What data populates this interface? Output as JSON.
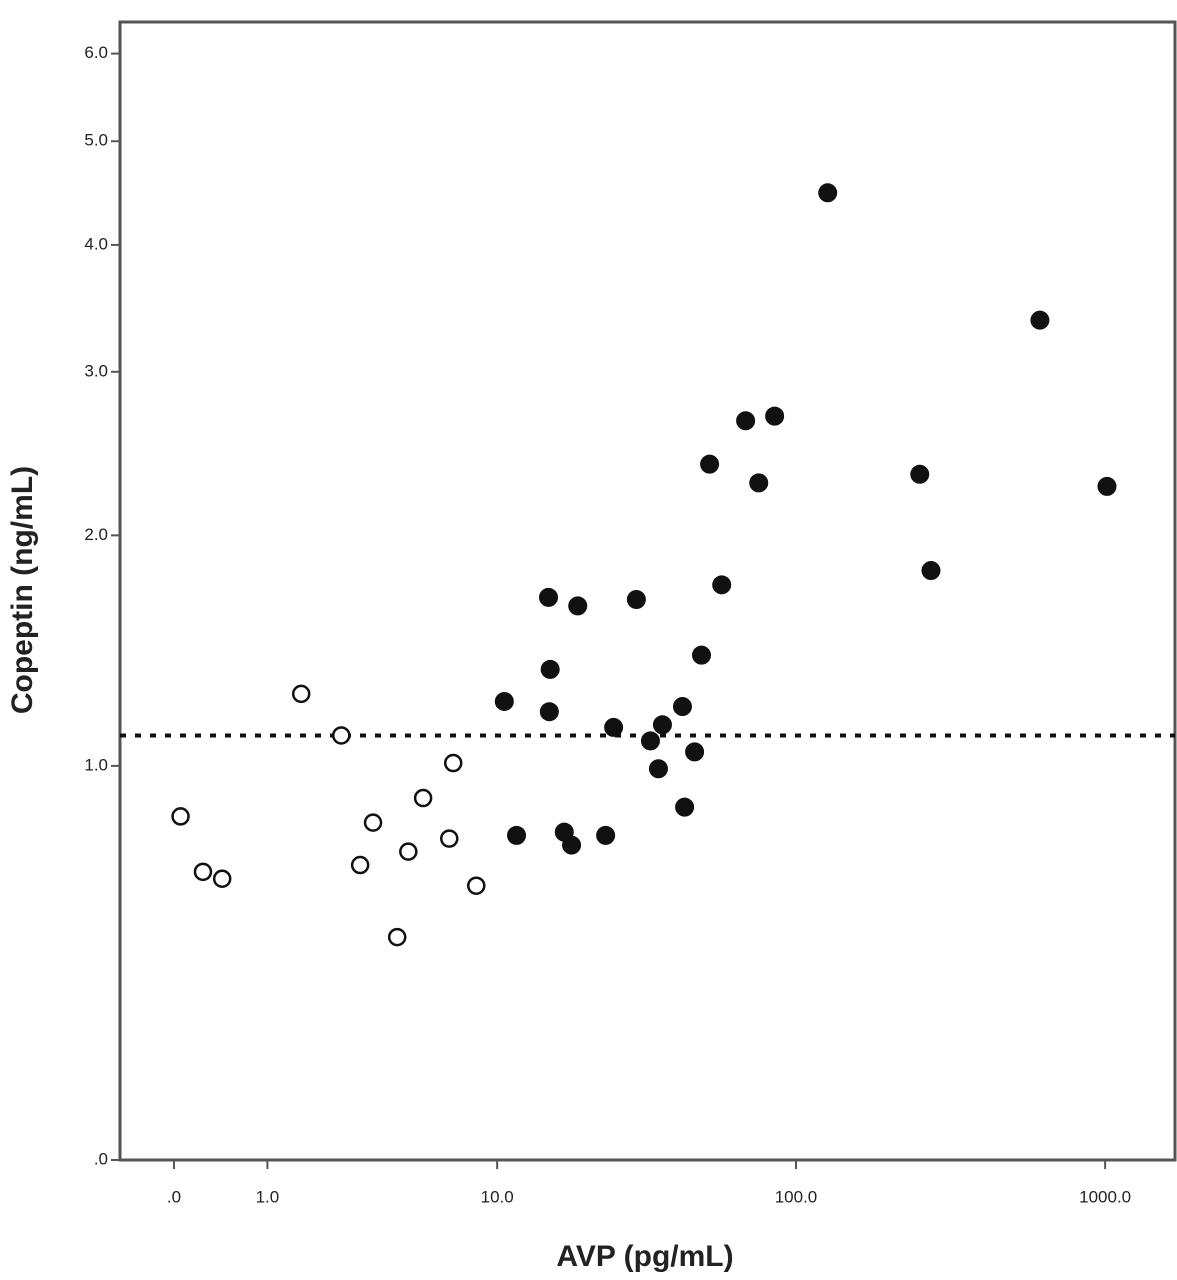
{
  "chart_data": {
    "type": "scatter",
    "xlabel": "AVP (pg/mL)",
    "ylabel": "Copeptin (ng/mL)",
    "xscale": "log1p",
    "yscale": "log1p",
    "xlim": [
      -0.33,
      1680
    ],
    "ylim": [
      0,
      6.4
    ],
    "xticks": [
      {
        "value": 0,
        "label": ".0"
      },
      {
        "value": 1,
        "label": "1.0"
      },
      {
        "value": 10,
        "label": "10.0"
      },
      {
        "value": 100,
        "label": "100.0"
      },
      {
        "value": 1000,
        "label": "1000.0"
      }
    ],
    "yticks": [
      {
        "value": 0,
        "label": ".0"
      },
      {
        "value": 1,
        "label": "1.0"
      },
      {
        "value": 2,
        "label": "2.0"
      },
      {
        "value": 3,
        "label": "3.0"
      },
      {
        "value": 4,
        "label": "4.0"
      },
      {
        "value": 5,
        "label": "5.0"
      },
      {
        "value": 6,
        "label": "6.0"
      }
    ],
    "hline": 1.11,
    "series": [
      {
        "color": "#111111",
        "marker": "open",
        "x": [
          0.05,
          0.24,
          0.43,
          1.57,
          2.46,
          2.98,
          3.38,
          4.24,
          4.69,
          5.35,
          6.71,
          6.94,
          8.42
        ],
        "values": [
          0.83,
          0.66,
          0.64,
          1.27,
          1.11,
          0.68,
          0.81,
          0.48,
          0.72,
          0.89,
          0.76,
          1.01,
          0.62
        ]
      },
      {
        "color": "#111111",
        "marker": "filled",
        "x": [
          10.6,
          11.7,
          15.1,
          15.3,
          15.2,
          17.1,
          18.1,
          19.0,
          23.6,
          25.1,
          29.9,
          33.3,
          35.4,
          36.5,
          42.5,
          43.2,
          46.6,
          49.1,
          52.2,
          57.2,
          68.5,
          75.6,
          85.2,
          126.8,
          252,
          274,
          616,
          1014
        ],
        "values": [
          1.24,
          0.77,
          1.69,
          1.37,
          1.2,
          0.78,
          0.74,
          1.65,
          0.77,
          1.14,
          1.68,
          1.09,
          0.99,
          1.15,
          1.22,
          0.86,
          1.05,
          1.43,
          2.4,
          1.75,
          2.67,
          2.29,
          2.7,
          4.48,
          2.34,
          1.82,
          3.38,
          2.27
        ]
      }
    ]
  }
}
